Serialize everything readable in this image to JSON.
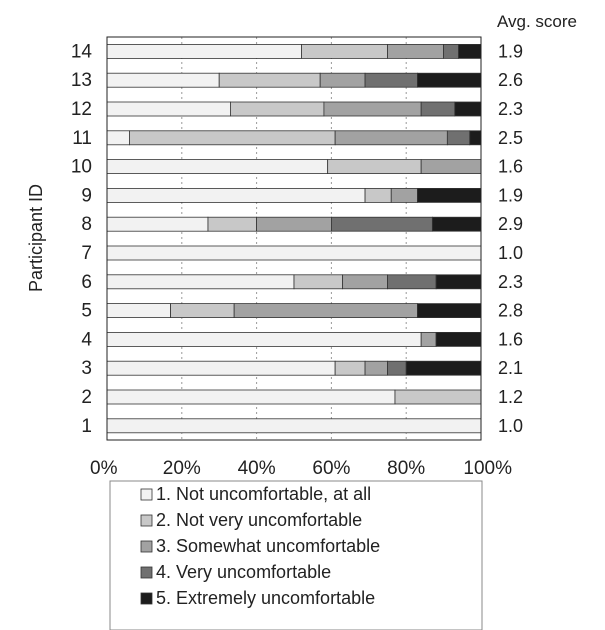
{
  "chart_data": {
    "type": "bar",
    "orientation": "horizontal",
    "stacked": "percent",
    "ylabel": "Participant ID",
    "right_axis_title": "Avg. score",
    "xlim": [
      0,
      100
    ],
    "x_ticks": [
      "0%",
      "20%",
      "40%",
      "60%",
      "80%",
      "100%"
    ],
    "grid": "vertical dashed",
    "legend_position": "bottom",
    "categories": [
      "14",
      "13",
      "12",
      "11",
      "10",
      "9",
      "8",
      "7",
      "6",
      "5",
      "4",
      "3",
      "2",
      "1"
    ],
    "avg_scores": [
      "1.9",
      "2.6",
      "2.3",
      "2.5",
      "1.6",
      "1.9",
      "2.9",
      "1.0",
      "2.3",
      "2.8",
      "1.6",
      "2.1",
      "1.2",
      "1.0"
    ],
    "series": [
      {
        "name": "1. Not uncomfortable, at all",
        "color": "#f2f2f2",
        "values": [
          52,
          30,
          33,
          6,
          59,
          69,
          27,
          100,
          50,
          17,
          84,
          61,
          77,
          100
        ]
      },
      {
        "name": "2. Not very uncomfortable",
        "color": "#c8c8c8",
        "values": [
          23,
          27,
          25,
          55,
          25,
          7,
          13,
          0,
          13,
          17,
          0,
          8,
          23,
          0
        ]
      },
      {
        "name": "3. Somewhat uncomfortable",
        "color": "#a2a2a2",
        "values": [
          15,
          12,
          26,
          30,
          16,
          7,
          20,
          0,
          12,
          49,
          4,
          6,
          0,
          0
        ]
      },
      {
        "name": "4. Very uncomfortable",
        "color": "#707070",
        "values": [
          4,
          14,
          9,
          6,
          0,
          0,
          27,
          0,
          13,
          0,
          0,
          5,
          0,
          0
        ]
      },
      {
        "name": "5. Extremely uncomfortable",
        "color": "#1c1c1c",
        "values": [
          6,
          17,
          7,
          3,
          0,
          17,
          13,
          0,
          12,
          17,
          12,
          20,
          0,
          0
        ]
      }
    ]
  }
}
